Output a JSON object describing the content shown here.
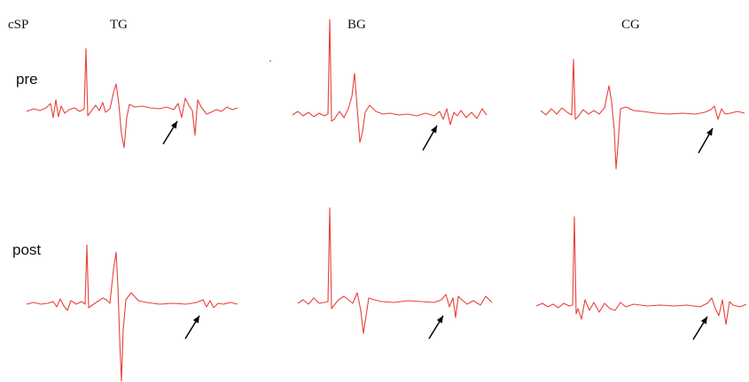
{
  "labels": {
    "group": "cSP",
    "columns": [
      "TG",
      "BG",
      "CG"
    ],
    "rows": [
      "pre",
      "post"
    ]
  },
  "colors": {
    "trace": "#e8403a",
    "arrow": "#000000"
  }
}
